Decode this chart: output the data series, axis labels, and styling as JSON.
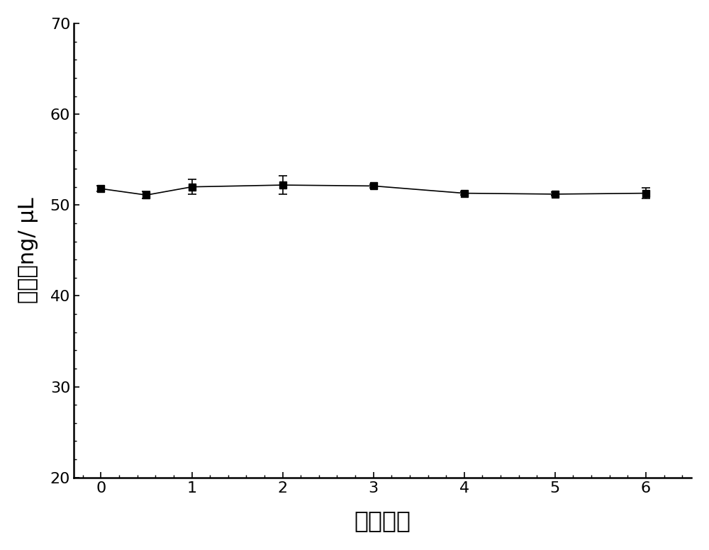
{
  "x": [
    0,
    0.5,
    1,
    2,
    3,
    4,
    5,
    6
  ],
  "y": [
    51.8,
    51.1,
    52.0,
    52.2,
    52.1,
    51.3,
    51.2,
    51.3
  ],
  "yerr": [
    0.3,
    0.4,
    0.8,
    1.0,
    0.2,
    0.2,
    0.2,
    0.6
  ],
  "xlabel": "时间，月",
  "ylabel": "浓度，ng/ μL",
  "xlim": [
    -0.3,
    6.5
  ],
  "ylim": [
    20,
    70
  ],
  "xticks": [
    0,
    1,
    2,
    3,
    4,
    5,
    6
  ],
  "yticks": [
    20,
    30,
    40,
    50,
    60,
    70
  ],
  "line_color": "#000000",
  "marker": "s",
  "marker_color": "#000000",
  "marker_size": 7,
  "line_width": 1.2,
  "background_color": "#ffffff",
  "xlabel_fontsize": 24,
  "ylabel_fontsize": 22,
  "tick_fontsize": 16,
  "spine_linewidth": 1.8,
  "minor_tick_count": 4
}
